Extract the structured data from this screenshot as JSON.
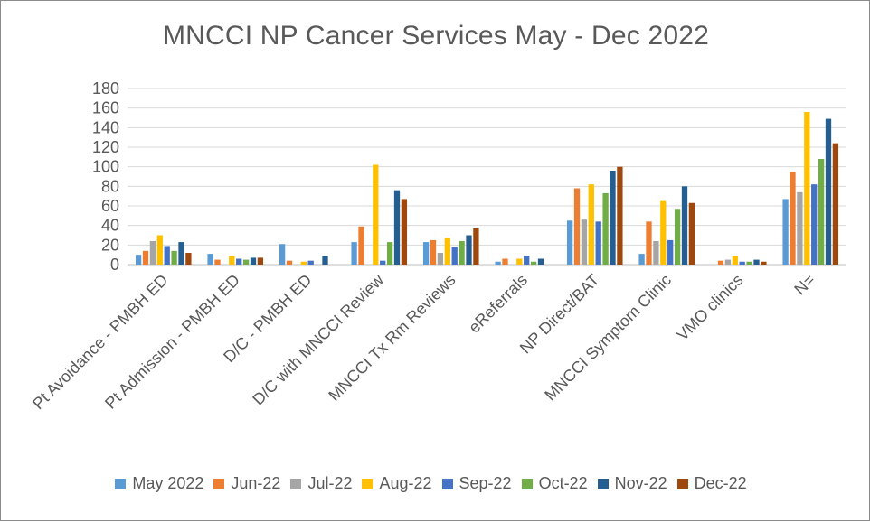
{
  "chart_data": {
    "type": "bar",
    "title": "MNCCI NP Cancer Services May - Dec 2022",
    "xlabel": "",
    "ylabel": "",
    "ylim": [
      0,
      180
    ],
    "yticks": [
      0,
      20,
      40,
      60,
      80,
      100,
      120,
      140,
      160,
      180
    ],
    "grid": true,
    "legend_position": "bottom",
    "categories": [
      "Pt Avoidance - PMBH ED",
      "Pt Admission - PMBH ED",
      "D/C - PMBH ED",
      "D/C with MNCCI Review",
      "MNCCI Tx Rm Reviews",
      "eReferrals",
      "NP Direct/BAT",
      "MNCCI Symptom Clinic",
      "VMO clinics",
      "N="
    ],
    "series": [
      {
        "name": "May 2022",
        "color": "#5B9BD5",
        "values": [
          10,
          11,
          21,
          23,
          23,
          3,
          45,
          11,
          0,
          67
        ]
      },
      {
        "name": "Jun-22",
        "color": "#ED7D31",
        "values": [
          14,
          5,
          4,
          39,
          25,
          6,
          78,
          44,
          4,
          95
        ]
      },
      {
        "name": "Jul-22",
        "color": "#A5A5A5",
        "values": [
          24,
          0,
          0,
          0,
          12,
          0,
          46,
          24,
          5,
          74
        ]
      },
      {
        "name": "Aug-22",
        "color": "#FFC000",
        "values": [
          30,
          9,
          3,
          102,
          27,
          6,
          82,
          65,
          9,
          156
        ]
      },
      {
        "name": "Sep-22",
        "color": "#4472C4",
        "values": [
          19,
          6,
          4,
          4,
          18,
          9,
          44,
          25,
          3,
          82
        ]
      },
      {
        "name": "Oct-22",
        "color": "#70AD47",
        "values": [
          14,
          5,
          0,
          23,
          24,
          3,
          73,
          57,
          3,
          108
        ]
      },
      {
        "name": "Nov-22",
        "color": "#255E91",
        "values": [
          23,
          7,
          9,
          76,
          30,
          6,
          96,
          80,
          5,
          149
        ]
      },
      {
        "name": "Dec-22",
        "color": "#9E480E",
        "values": [
          12,
          7,
          0,
          67,
          37,
          0,
          100,
          63,
          3,
          124
        ]
      }
    ]
  }
}
